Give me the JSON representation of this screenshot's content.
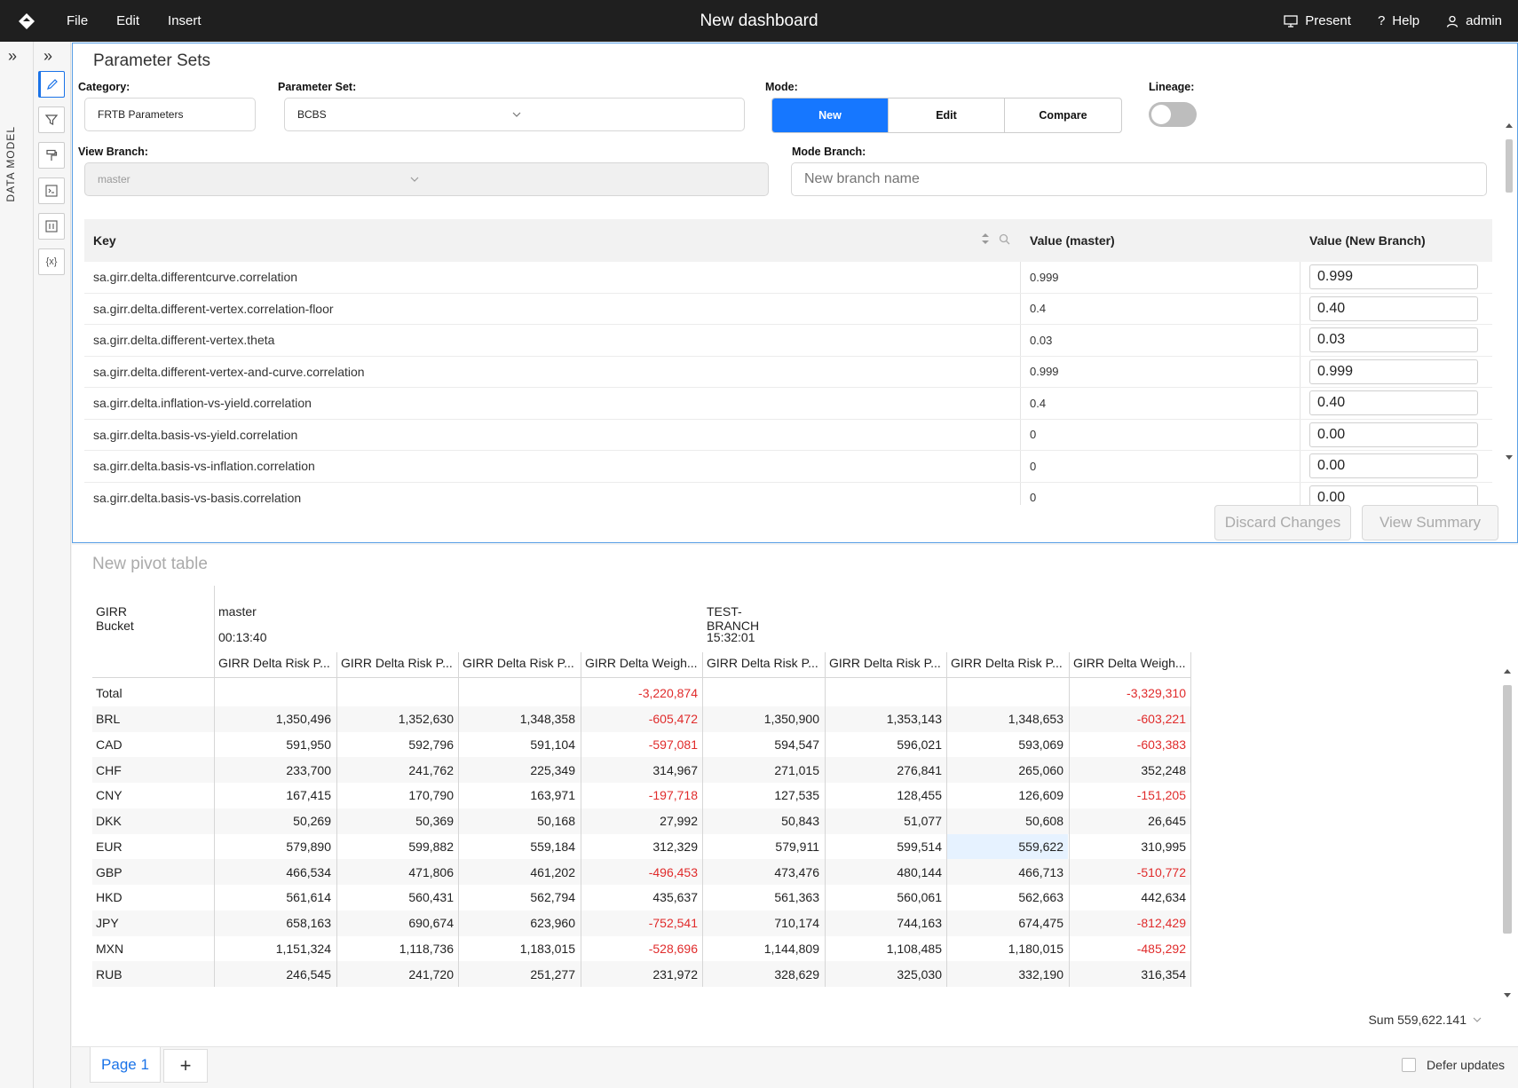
{
  "topbar": {
    "title": "New dashboard",
    "menu": [
      "File",
      "Edit",
      "Insert"
    ],
    "present": "Present",
    "help": "Help",
    "user": "admin"
  },
  "rail": {
    "label": "DATA MODEL"
  },
  "params": {
    "title": "Parameter Sets",
    "category_label": "Category:",
    "category_value": "FRTB Parameters",
    "param_set_label": "Parameter Set:",
    "param_set_value": "BCBS",
    "mode_label": "Mode:",
    "modes": [
      "New",
      "Edit",
      "Compare"
    ],
    "active_mode": "New",
    "lineage_label": "Lineage:",
    "view_branch_label": "View Branch:",
    "view_branch_value": "master",
    "mode_branch_label": "Mode Branch:",
    "mode_branch_placeholder": "New branch name",
    "table": {
      "headers": [
        "Key",
        "Value (master)",
        "Value (New Branch)"
      ],
      "rows": [
        [
          "sa.girr.delta.differentcurve.correlation",
          "0.999",
          "0.999"
        ],
        [
          "sa.girr.delta.different-vertex.correlation-floor",
          "0.4",
          "0.40"
        ],
        [
          "sa.girr.delta.different-vertex.theta",
          "0.03",
          "0.03"
        ],
        [
          "sa.girr.delta.different-vertex-and-curve.correlation",
          "0.999",
          "0.999"
        ],
        [
          "sa.girr.delta.inflation-vs-yield.correlation",
          "0.4",
          "0.40"
        ],
        [
          "sa.girr.delta.basis-vs-yield.correlation",
          "0",
          "0.00"
        ],
        [
          "sa.girr.delta.basis-vs-inflation.correlation",
          "0",
          "0.00"
        ],
        [
          "sa.girr.delta.basis-vs-basis.correlation",
          "0",
          "0.00"
        ]
      ]
    },
    "discard_label": "Discard Changes",
    "summary_label": "View Summary"
  },
  "pivot": {
    "title": "New pivot table",
    "row_header": "GIRR Bucket",
    "branches": [
      {
        "name": "master",
        "time": "00:13:40"
      },
      {
        "name": "TEST-BRANCH",
        "time": "15:32:01"
      }
    ],
    "col_headers": [
      "GIRR Delta Risk P...",
      "GIRR Delta Risk P...",
      "GIRR Delta Risk P...",
      "GIRR Delta Weigh...",
      "GIRR Delta Risk P...",
      "GIRR Delta Risk P...",
      "GIRR Delta Risk P...",
      "GIRR Delta Weigh..."
    ],
    "rows": [
      {
        "label": "Total",
        "cells": [
          "",
          "",
          "",
          "-3,220,874",
          "",
          "",
          "",
          "-3,329,310"
        ]
      },
      {
        "label": "BRL",
        "cells": [
          "1,350,496",
          "1,352,630",
          "1,348,358",
          "-605,472",
          "1,350,900",
          "1,353,143",
          "1,348,653",
          "-603,221"
        ]
      },
      {
        "label": "CAD",
        "cells": [
          "591,950",
          "592,796",
          "591,104",
          "-597,081",
          "594,547",
          "596,021",
          "593,069",
          "-603,383"
        ]
      },
      {
        "label": "CHF",
        "cells": [
          "233,700",
          "241,762",
          "225,349",
          "314,967",
          "271,015",
          "276,841",
          "265,060",
          "352,248"
        ]
      },
      {
        "label": "CNY",
        "cells": [
          "167,415",
          "170,790",
          "163,971",
          "-197,718",
          "127,535",
          "128,455",
          "126,609",
          "-151,205"
        ]
      },
      {
        "label": "DKK",
        "cells": [
          "50,269",
          "50,369",
          "50,168",
          "27,992",
          "50,843",
          "51,077",
          "50,608",
          "26,645"
        ]
      },
      {
        "label": "EUR",
        "cells": [
          "579,890",
          "599,882",
          "559,184",
          "312,329",
          "579,911",
          "599,514",
          "559,622",
          "310,995"
        ]
      },
      {
        "label": "GBP",
        "cells": [
          "466,534",
          "471,806",
          "461,202",
          "-496,453",
          "473,476",
          "480,144",
          "466,713",
          "-510,772"
        ]
      },
      {
        "label": "HKD",
        "cells": [
          "561,614",
          "560,431",
          "562,794",
          "435,637",
          "561,363",
          "560,061",
          "562,663",
          "442,634"
        ]
      },
      {
        "label": "JPY",
        "cells": [
          "658,163",
          "690,674",
          "623,960",
          "-752,541",
          "710,174",
          "744,163",
          "674,475",
          "-812,429"
        ]
      },
      {
        "label": "MXN",
        "cells": [
          "1,151,324",
          "1,118,736",
          "1,183,015",
          "-528,696",
          "1,144,809",
          "1,108,485",
          "1,180,015",
          "-485,292"
        ]
      },
      {
        "label": "RUB",
        "cells": [
          "246,545",
          "241,720",
          "251,277",
          "231,972",
          "328,629",
          "325,030",
          "332,190",
          "316,354"
        ]
      }
    ],
    "selected_cell": {
      "row": 6,
      "col": 6
    },
    "sum_text": "Sum 559,622.141"
  },
  "bottom": {
    "page_tab": "Page 1",
    "add_tab": "+",
    "defer_label": "Defer updates"
  },
  "colors": {
    "accent": "#1677ff",
    "negative": "#e02b2b",
    "topbar": "#1f1f1f"
  }
}
